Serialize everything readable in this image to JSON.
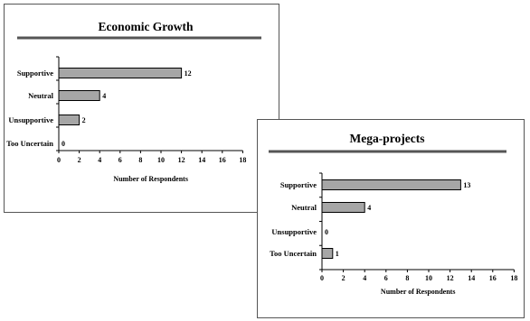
{
  "chart_data": [
    {
      "type": "bar",
      "orientation": "horizontal",
      "title": "Economic Growth",
      "categories": [
        "Supportive",
        "Neutral",
        "Unsupportive",
        "Too Uncertain"
      ],
      "values": [
        12,
        4,
        2,
        0
      ],
      "xlabel": "Number of Respondents",
      "ylabel": "",
      "xlim": [
        0,
        18
      ],
      "xticks": [
        "0",
        "2",
        "4",
        "6",
        "8",
        "10",
        "12",
        "14",
        "16",
        "18"
      ],
      "data_labels": [
        "12",
        "4",
        "2",
        "0"
      ],
      "grid": false,
      "bar_color": "#a6a6a6"
    },
    {
      "type": "bar",
      "orientation": "horizontal",
      "title": "Mega-projects",
      "categories": [
        "Supportive",
        "Neutral",
        "Unsupportive",
        "Too Uncertain"
      ],
      "values": [
        13,
        4,
        0,
        1
      ],
      "xlabel": "Number of Respondents",
      "ylabel": "",
      "xlim": [
        0,
        18
      ],
      "xticks": [
        "0",
        "2",
        "4",
        "6",
        "8",
        "10",
        "12",
        "14",
        "16",
        "18"
      ],
      "data_labels": [
        "13",
        "4",
        "0",
        "1"
      ],
      "grid": false,
      "bar_color": "#a6a6a6"
    }
  ]
}
